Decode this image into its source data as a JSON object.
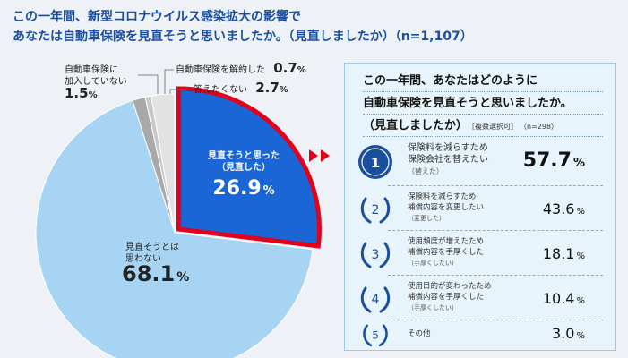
{
  "title": {
    "line1": "この一年間、新型コロナウイルス感染拡大の影響で",
    "line2": "あなたは自動車保険を見直そうと思いましたか。（見直しましたか）（n=1,107）"
  },
  "chart_data": [
    {
      "type": "pie",
      "title": "この一年間、新型コロナウイルス感染拡大の影響で あなたは自動車保険を見直そうと思いましたか。（見直しましたか）（n=1,107）",
      "n": "n=1,107",
      "slices": [
        {
          "label_lines": [
            "見直そうと思った",
            "（見直した）"
          ],
          "value": 26.9,
          "color": "#1a66d6",
          "highlight_color": "#e3001b"
        },
        {
          "label_lines": [
            "見直そうとは",
            "思わない"
          ],
          "value": 68.1,
          "color": "#a6d4f2"
        },
        {
          "label_lines": [
            "自動車保険に",
            "加入していない"
          ],
          "value": 1.5,
          "color": "#a9a9a9"
        },
        {
          "label_lines": [
            "自動車保険を解約した"
          ],
          "value": 0.7,
          "color": "#c9c9c9"
        },
        {
          "label_lines": [
            "答えたくない"
          ],
          "value": 2.7,
          "color": "#e2e2e2"
        }
      ]
    },
    {
      "type": "table",
      "title_lines": [
        "この一年間、あなたはどのように",
        "自動車保険を見直そうと思いましたか。",
        "（見直しましたか）"
      ],
      "note": "［複数選択可］",
      "n": "（n=298）",
      "rows": [
        {
          "rank": "1",
          "label_lines": [
            "保険料を減らすため",
            "保険会社を替えたい"
          ],
          "sub": "（替えた）",
          "value": 57.7
        },
        {
          "rank": "2",
          "label_lines": [
            "保険料を減らすため",
            "補償内容を変更したい"
          ],
          "sub": "（変更した）",
          "value": 43.6
        },
        {
          "rank": "3",
          "label_lines": [
            "使用頻度が増えたため",
            "補償内容を手厚くした"
          ],
          "sub": "（手厚くしたい）",
          "value": 18.1
        },
        {
          "rank": "4",
          "label_lines": [
            "使用目的が変わったため",
            "補償内容を手厚くした"
          ],
          "sub": "（手厚くしたい）",
          "value": 10.4
        },
        {
          "rank": "5",
          "label_lines": [
            "その他"
          ],
          "sub": "",
          "value": 3.0
        }
      ],
      "pct_symbol": "%"
    }
  ],
  "colors": {
    "title": "#1a4fa0",
    "accent_red": "#e3001b",
    "badge_blue": "#1a4fa0",
    "panel_bg": "#e8f4fb"
  }
}
